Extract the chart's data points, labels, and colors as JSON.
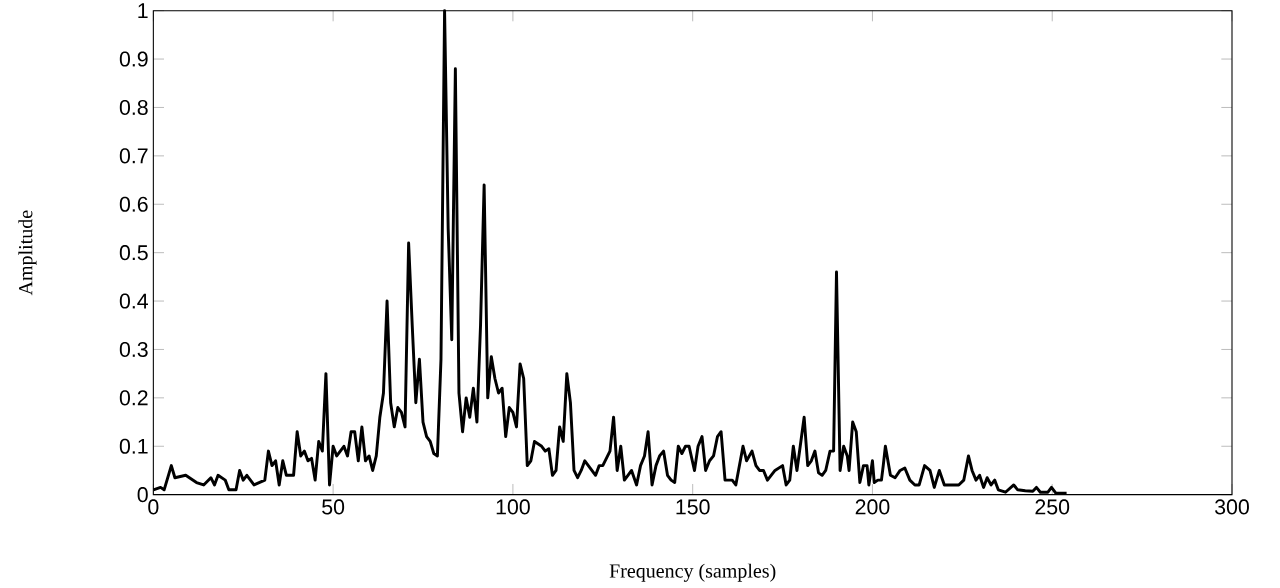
{
  "chart_data": {
    "type": "line",
    "xlabel": "Frequency (samples)",
    "ylabel": "Amplitude",
    "xlim": [
      0,
      300
    ],
    "ylim": [
      0,
      1
    ],
    "xticks": [
      0,
      50,
      100,
      150,
      200,
      250,
      300
    ],
    "yticks": [
      0,
      0.1,
      0.2,
      0.3,
      0.4,
      0.5,
      0.6,
      0.7,
      0.8,
      0.9,
      1
    ],
    "marker": "none",
    "line_style": "solid",
    "series": [
      {
        "color": "#000000",
        "x": [
          0,
          2,
          3,
          5,
          6,
          9,
          12,
          14,
          16,
          17,
          18,
          20,
          21,
          23,
          24,
          25,
          26,
          28,
          31,
          32,
          33,
          34,
          35,
          36,
          37,
          39,
          40,
          41,
          42,
          43,
          44,
          45,
          46,
          47,
          48,
          49,
          50,
          51,
          53,
          54,
          55,
          56,
          57,
          58,
          59,
          60,
          61,
          62,
          63,
          64,
          65,
          66,
          67,
          68,
          69,
          70,
          71,
          72,
          73,
          74,
          75,
          76,
          77,
          78,
          79,
          80,
          81,
          82,
          83,
          84,
          85,
          86,
          87,
          88,
          89,
          90,
          91,
          92,
          93,
          94,
          95,
          96,
          97,
          98,
          99,
          100,
          101,
          102,
          103,
          104,
          105,
          106,
          108,
          109,
          110,
          111,
          112,
          113,
          114,
          115,
          116,
          117,
          118,
          119,
          120,
          121,
          123,
          124,
          125,
          126,
          127,
          128,
          129,
          130,
          131,
          132,
          133,
          134.4,
          135.5,
          136.6,
          137.6,
          138.7,
          139.8,
          140.8,
          141.9,
          143,
          144,
          145,
          146,
          147,
          148,
          149,
          150.5,
          151.5,
          152.6,
          153.6,
          154.7,
          155.8,
          156.9,
          157.9,
          159,
          161,
          162,
          164,
          165,
          166.5,
          167.6,
          168.6,
          169.7,
          170.8,
          172.9,
          175,
          176,
          177,
          178,
          179,
          181,
          182,
          183,
          184,
          185,
          186,
          187,
          188.2,
          189.2,
          190,
          191,
          192,
          193,
          193.5,
          194.5,
          195.5,
          196.5,
          197.5,
          198.5,
          199,
          200,
          200.5,
          201.5,
          202.5,
          203,
          203.6,
          205,
          206.3,
          207.7,
          209,
          210.4,
          211.8,
          213,
          214.5,
          216,
          217.2,
          218.6,
          220,
          221.3,
          224,
          225.4,
          226.7,
          227.7,
          228.8,
          229.8,
          230.9,
          231.9,
          233,
          234,
          235,
          237,
          239.3,
          240.4,
          242.5,
          244.6,
          245.6,
          246.7,
          248.8,
          249.8,
          251,
          254
        ],
        "values": [
          0.01,
          0.015,
          0.01,
          0.06,
          0.035,
          0.04,
          0.025,
          0.02,
          0.035,
          0.02,
          0.04,
          0.03,
          0.01,
          0.01,
          0.05,
          0.03,
          0.04,
          0.02,
          0.03,
          0.09,
          0.06,
          0.07,
          0.02,
          0.07,
          0.04,
          0.04,
          0.13,
          0.08,
          0.09,
          0.07,
          0.075,
          0.03,
          0.11,
          0.09,
          0.25,
          0.02,
          0.1,
          0.08,
          0.1,
          0.08,
          0.13,
          0.13,
          0.07,
          0.14,
          0.07,
          0.08,
          0.05,
          0.08,
          0.16,
          0.21,
          0.4,
          0.19,
          0.14,
          0.18,
          0.17,
          0.14,
          0.52,
          0.35,
          0.19,
          0.28,
          0.15,
          0.12,
          0.11,
          0.085,
          0.08,
          0.28,
          1.0,
          0.55,
          0.32,
          0.88,
          0.21,
          0.13,
          0.2,
          0.16,
          0.22,
          0.15,
          0.35,
          0.64,
          0.2,
          0.285,
          0.24,
          0.21,
          0.22,
          0.12,
          0.18,
          0.17,
          0.14,
          0.27,
          0.24,
          0.06,
          0.07,
          0.11,
          0.1,
          0.09,
          0.095,
          0.04,
          0.05,
          0.14,
          0.11,
          0.25,
          0.19,
          0.05,
          0.035,
          0.05,
          0.07,
          0.06,
          0.04,
          0.06,
          0.06,
          0.075,
          0.09,
          0.16,
          0.05,
          0.1,
          0.03,
          0.04,
          0.05,
          0.02,
          0.06,
          0.08,
          0.13,
          0.02,
          0.06,
          0.08,
          0.09,
          0.04,
          0.03,
          0.025,
          0.1,
          0.085,
          0.1,
          0.1,
          0.05,
          0.1,
          0.12,
          0.05,
          0.07,
          0.08,
          0.12,
          0.13,
          0.03,
          0.03,
          0.02,
          0.1,
          0.07,
          0.09,
          0.06,
          0.05,
          0.05,
          0.03,
          0.05,
          0.06,
          0.02,
          0.03,
          0.1,
          0.05,
          0.16,
          0.06,
          0.07,
          0.09,
          0.045,
          0.04,
          0.05,
          0.09,
          0.09,
          0.46,
          0.05,
          0.1,
          0.08,
          0.05,
          0.15,
          0.13,
          0.025,
          0.06,
          0.06,
          0.02,
          0.07,
          0.025,
          0.03,
          0.03,
          0.06,
          0.1,
          0.04,
          0.035,
          0.05,
          0.055,
          0.03,
          0.02,
          0.02,
          0.06,
          0.05,
          0.015,
          0.05,
          0.02,
          0.02,
          0.02,
          0.03,
          0.08,
          0.05,
          0.03,
          0.04,
          0.015,
          0.035,
          0.02,
          0.03,
          0.01,
          0.005,
          0.02,
          0.01,
          0.008,
          0.007,
          0.015,
          0.005,
          0.005,
          0.015,
          0.003,
          0.003
        ]
      }
    ]
  }
}
